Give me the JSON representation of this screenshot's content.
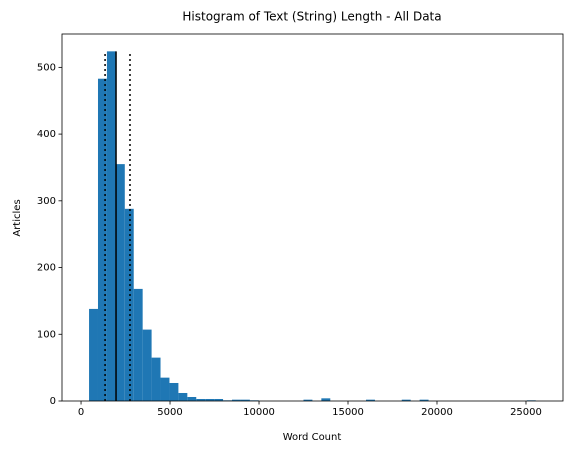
{
  "chart_data": {
    "type": "histogram",
    "title": "Histogram of Text (String) Length - All Data",
    "x_label": "Word Count",
    "y_label": "Articles",
    "color": "#1f77b4",
    "bins": [
      450,
      952,
      1454,
      1956,
      2458,
      2960,
      3462,
      3964,
      4466,
      4968,
      5470,
      5972,
      6474,
      6976,
      7478,
      7980,
      8482,
      8984,
      9486,
      9988,
      10490,
      10992,
      11494,
      11996,
      12498,
      13000,
      13502,
      14004,
      14506,
      15008,
      15510,
      16012,
      16514,
      17016,
      17518,
      18020,
      18522,
      19024,
      19526,
      20028,
      20530,
      21032,
      21534,
      22036,
      22538,
      23040,
      23542,
      24044,
      24546,
      25048,
      25550
    ],
    "values": [
      138,
      483,
      524,
      355,
      288,
      168,
      107,
      65,
      35,
      27,
      12,
      6,
      3,
      3,
      3,
      1,
      2,
      2,
      1,
      0,
      0,
      0,
      0,
      0,
      2,
      0,
      4,
      0,
      0,
      0,
      0,
      2,
      0,
      0,
      0,
      2,
      0,
      2,
      0,
      0,
      0,
      0,
      0,
      0,
      0,
      0,
      0,
      0,
      0,
      1
    ],
    "reference_lines": [
      {
        "x": 1350,
        "ymax": 524,
        "style": "dotted"
      },
      {
        "x": 1966,
        "ymax": 524,
        "style": "solid"
      },
      {
        "x": 2750,
        "ymax": 524,
        "style": "dotted"
      }
    ],
    "xlim": [
      -1070,
      27080
    ],
    "ylim": [
      0,
      550
    ],
    "xticks": [
      0,
      5000,
      10000,
      15000,
      20000,
      25000
    ],
    "yticks": [
      0,
      100,
      200,
      300,
      400,
      500
    ]
  }
}
